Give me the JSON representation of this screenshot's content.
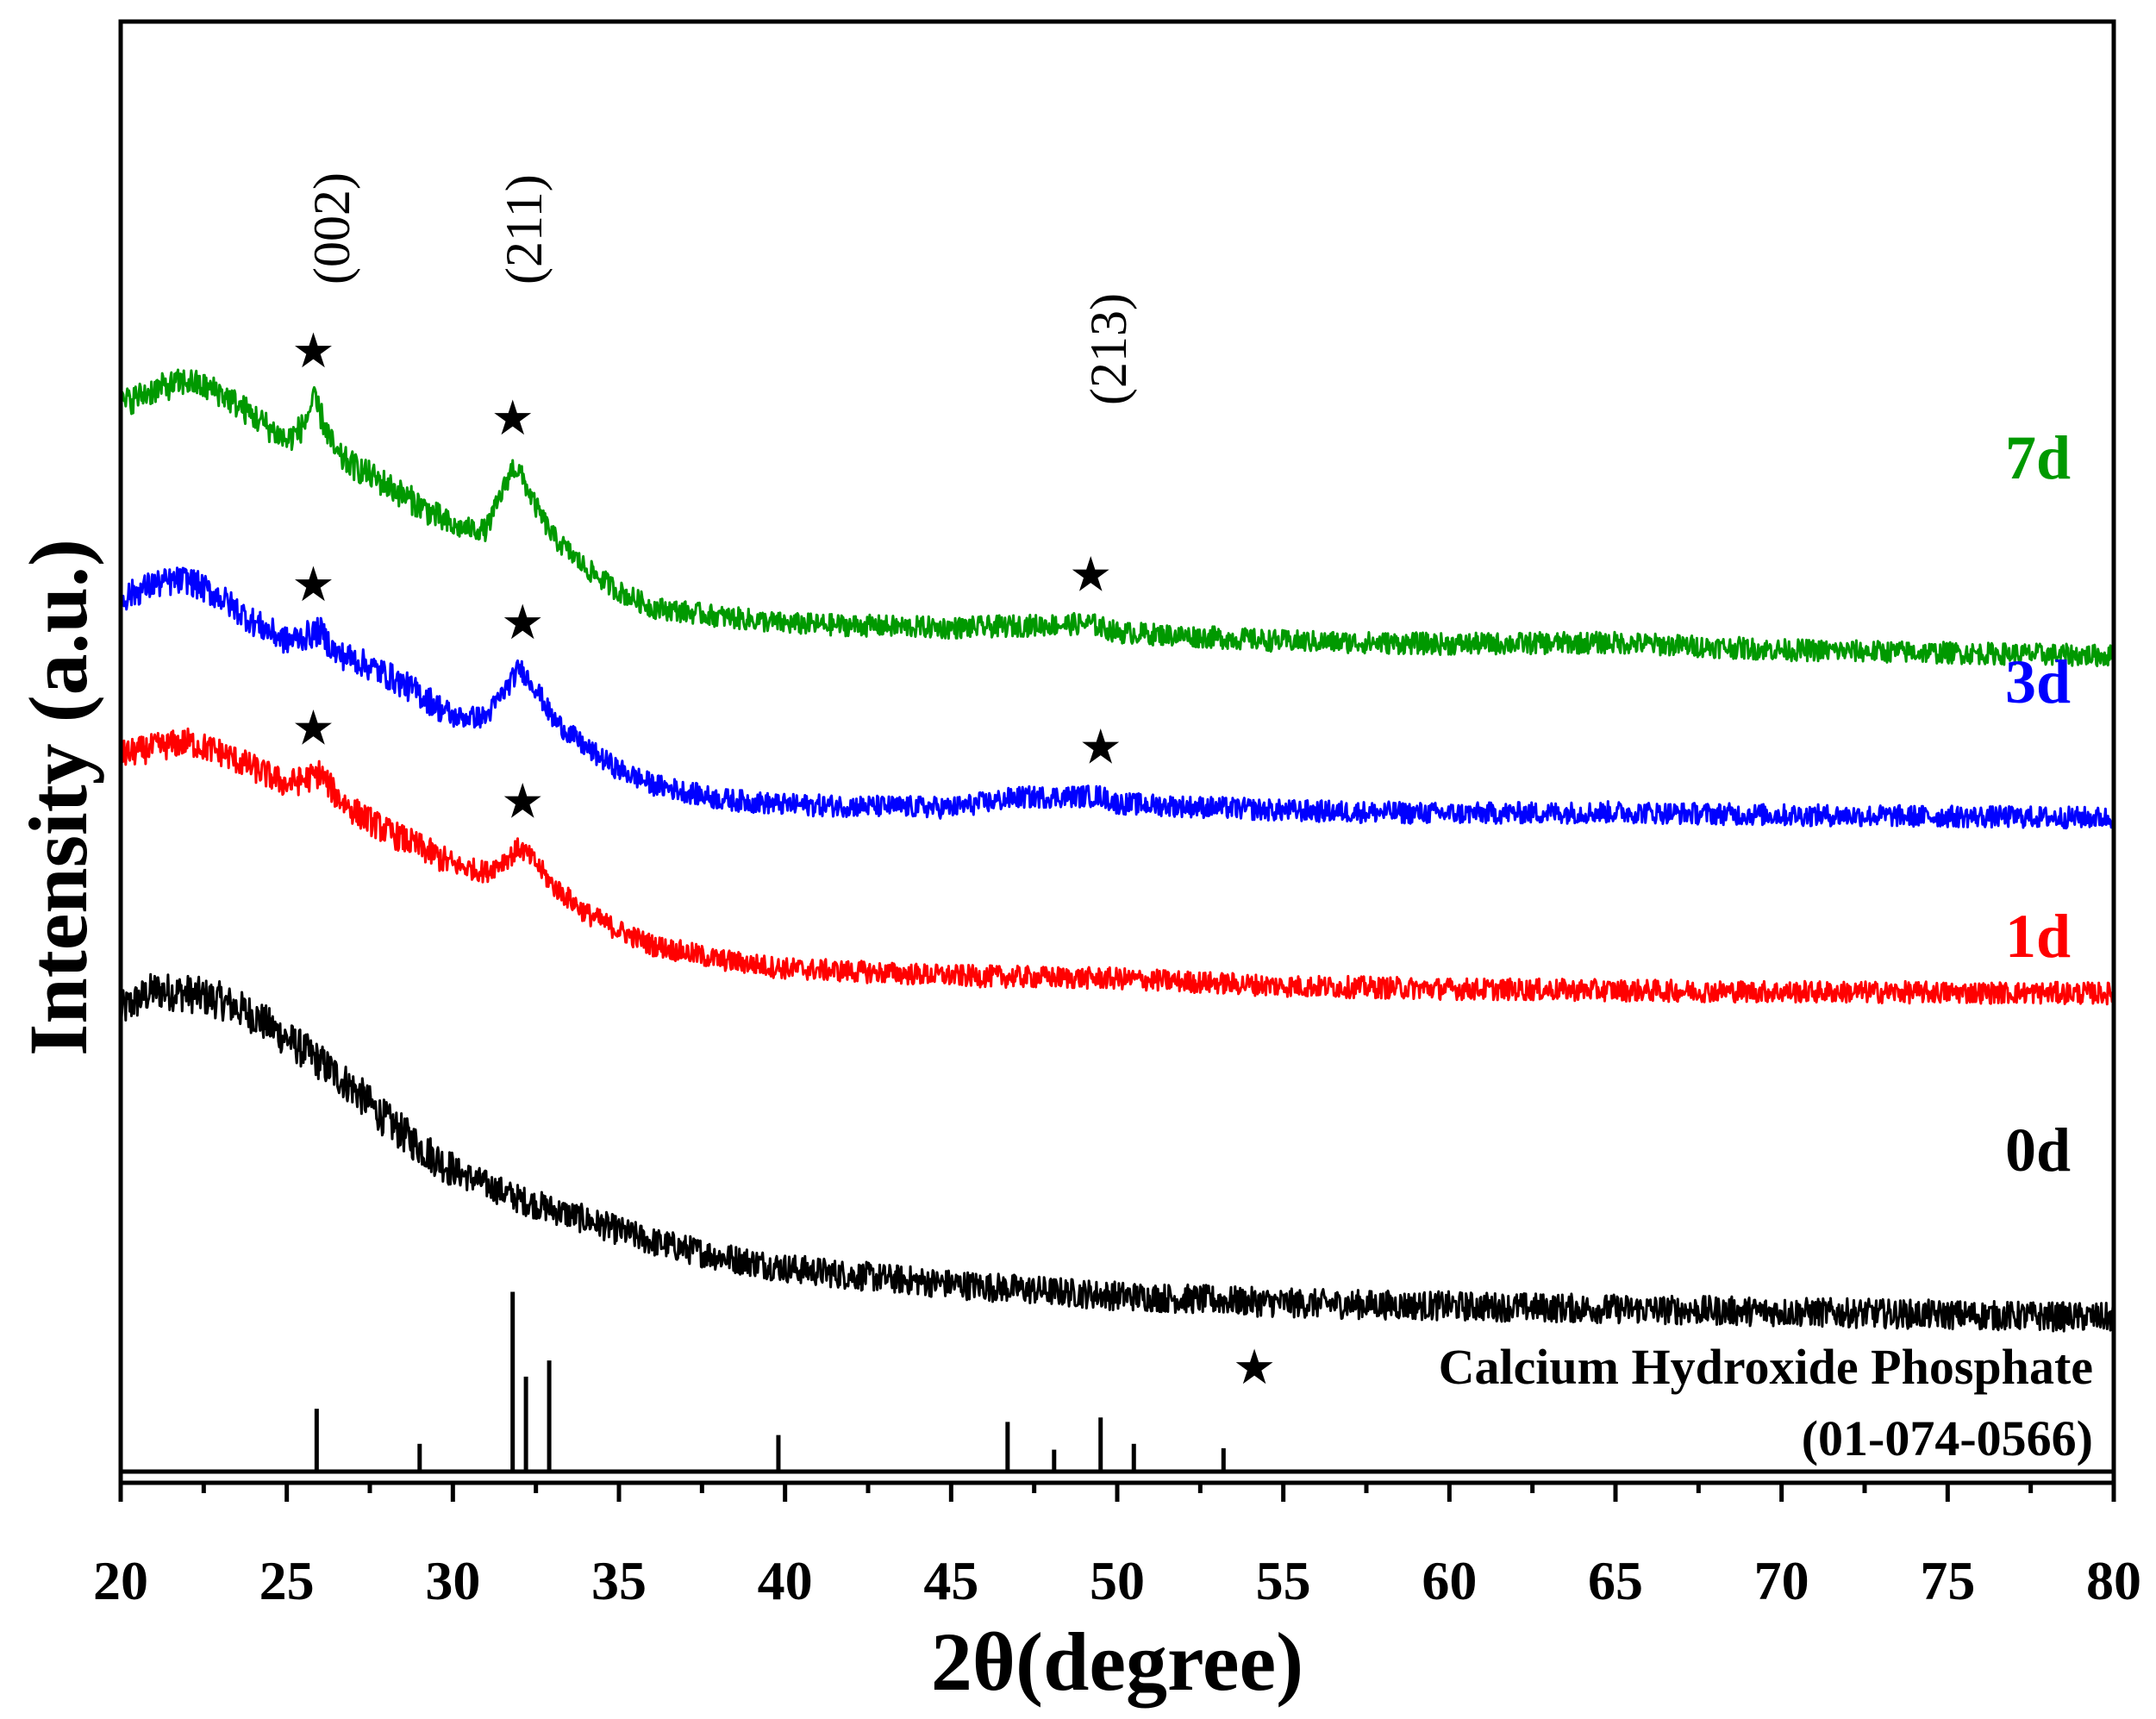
{
  "chart_data": {
    "type": "line",
    "title": "",
    "xlabel": "2θ(degree)",
    "ylabel": "Intensity (a.u.)",
    "xlim": [
      20,
      80
    ],
    "xticks": [
      20,
      25,
      30,
      35,
      40,
      45,
      50,
      55,
      60,
      65,
      70,
      75,
      80
    ],
    "ylim": [
      0,
      100
    ],
    "grid": false,
    "series": [
      {
        "name": "0d",
        "color": "#000000",
        "points": [
          [
            20,
            32.3
          ],
          [
            21,
            33.7
          ],
          [
            22,
            33.5
          ],
          [
            23,
            33.0
          ],
          [
            24,
            32.0
          ],
          [
            25,
            30.4
          ],
          [
            26,
            28.8
          ],
          [
            27,
            27.0
          ],
          [
            28,
            24.8
          ],
          [
            29,
            23.0
          ],
          [
            30,
            21.4
          ],
          [
            32,
            19.4
          ],
          [
            34,
            18.0
          ],
          [
            36,
            16.5
          ],
          [
            38,
            15.5
          ],
          [
            40,
            14.7
          ],
          [
            42,
            14.2
          ],
          [
            45,
            13.6
          ],
          [
            48,
            13.1
          ],
          [
            50,
            12.8
          ],
          [
            55,
            12.3
          ],
          [
            60,
            12.1
          ],
          [
            65,
            11.9
          ],
          [
            70,
            11.7
          ],
          [
            75,
            11.5
          ],
          [
            80,
            11.3
          ]
        ]
      },
      {
        "name": "1d",
        "color": "#ff0000",
        "points": [
          [
            20,
            49.8
          ],
          [
            21,
            50.3
          ],
          [
            22,
            50.7
          ],
          [
            23,
            50.0
          ],
          [
            24,
            48.9
          ],
          [
            25,
            47.8
          ],
          [
            25.8,
            48.3
          ],
          [
            26,
            48.6
          ],
          [
            26.5,
            47.0
          ],
          [
            27,
            46.0
          ],
          [
            28,
            44.6
          ],
          [
            29,
            43.5
          ],
          [
            30,
            42.3
          ],
          [
            31,
            41.8
          ],
          [
            31.8,
            43.0
          ],
          [
            32,
            43.5
          ],
          [
            32.5,
            42.4
          ],
          [
            33,
            40.9
          ],
          [
            34,
            39.0
          ],
          [
            35,
            37.8
          ],
          [
            36,
            36.8
          ],
          [
            38,
            35.8
          ],
          [
            40,
            35.2
          ],
          [
            45,
            34.7
          ],
          [
            50,
            34.5
          ],
          [
            55,
            34.0
          ],
          [
            60,
            33.8
          ],
          [
            70,
            33.6
          ],
          [
            80,
            33.5
          ]
        ]
      },
      {
        "name": "3d",
        "color": "#0000ff",
        "points": [
          [
            20,
            60.5
          ],
          [
            21,
            61.5
          ],
          [
            22,
            61.8
          ],
          [
            23,
            60.6
          ],
          [
            24,
            58.9
          ],
          [
            25,
            57.6
          ],
          [
            25.8,
            58.1
          ],
          [
            26,
            58.3
          ],
          [
            26.5,
            56.7
          ],
          [
            27,
            56.4
          ],
          [
            28,
            55.3
          ],
          [
            29,
            54.0
          ],
          [
            30,
            52.4
          ],
          [
            31,
            52.4
          ],
          [
            31.8,
            55.0
          ],
          [
            32,
            55.8
          ],
          [
            32.5,
            54.4
          ],
          [
            33,
            52.3
          ],
          [
            34,
            50.3
          ],
          [
            35,
            48.8
          ],
          [
            36,
            47.8
          ],
          [
            38,
            46.8
          ],
          [
            40,
            46.4
          ],
          [
            45,
            46.2
          ],
          [
            47,
            46.9
          ],
          [
            49.5,
            47.0
          ],
          [
            50,
            46.5
          ],
          [
            55,
            46.0
          ],
          [
            60,
            45.8
          ],
          [
            65,
            45.9
          ],
          [
            70,
            45.7
          ],
          [
            80,
            45.5
          ]
        ]
      },
      {
        "name": "7d",
        "color": "#009900",
        "points": [
          [
            20,
            73.8
          ],
          [
            21,
            74.8
          ],
          [
            22,
            75.4
          ],
          [
            23,
            74.6
          ],
          [
            24,
            73.0
          ],
          [
            25,
            71.3
          ],
          [
            25.5,
            72.3
          ],
          [
            25.8,
            74.1
          ],
          [
            26,
            73.2
          ],
          [
            26.5,
            70.3
          ],
          [
            27,
            69.6
          ],
          [
            28,
            68.3
          ],
          [
            29,
            66.9
          ],
          [
            30,
            65.4
          ],
          [
            31,
            65.2
          ],
          [
            31.8,
            69.5
          ],
          [
            32,
            69.2
          ],
          [
            32.5,
            66.8
          ],
          [
            33,
            64.8
          ],
          [
            34,
            62.6
          ],
          [
            35,
            61.0
          ],
          [
            36,
            59.9
          ],
          [
            38,
            59.3
          ],
          [
            40,
            58.8
          ],
          [
            45,
            58.5
          ],
          [
            49.2,
            58.8
          ],
          [
            50,
            58.2
          ],
          [
            55,
            57.6
          ],
          [
            60,
            57.4
          ],
          [
            65,
            57.5
          ],
          [
            70,
            57.0
          ],
          [
            80,
            56.6
          ]
        ]
      }
    ],
    "series_labels": [
      "0d",
      "1d",
      "3d",
      "7d"
    ],
    "reference": {
      "name": "Calcium Hydroxide Phosphate",
      "code": "(01-074-0566)",
      "sticks": [
        [
          25.9,
          4.3
        ],
        [
          29.0,
          1.9
        ],
        [
          31.8,
          12.3
        ],
        [
          32.2,
          6.5
        ],
        [
          32.9,
          7.6
        ],
        [
          39.8,
          2.5
        ],
        [
          46.7,
          3.4
        ],
        [
          48.1,
          1.5
        ],
        [
          49.5,
          3.7
        ],
        [
          50.5,
          1.9
        ],
        [
          53.2,
          1.6
        ]
      ]
    },
    "annotations": {
      "star_symbol": "★",
      "miller_indices": [
        {
          "label": "(002)",
          "x": 25.8
        },
        {
          "label": "(211)",
          "x": 31.8
        },
        {
          "label": "(213)",
          "x": 49.2
        }
      ],
      "stars": [
        {
          "series": "7d",
          "x": 25.8
        },
        {
          "series": "7d",
          "x": 31.8
        },
        {
          "series": "7d",
          "x": 49.2
        },
        {
          "series": "3d",
          "x": 25.8
        },
        {
          "series": "3d",
          "x": 32.1
        },
        {
          "series": "3d",
          "x": 49.5
        },
        {
          "series": "1d",
          "x": 25.8
        },
        {
          "series": "1d",
          "x": 32.1
        }
      ]
    }
  }
}
